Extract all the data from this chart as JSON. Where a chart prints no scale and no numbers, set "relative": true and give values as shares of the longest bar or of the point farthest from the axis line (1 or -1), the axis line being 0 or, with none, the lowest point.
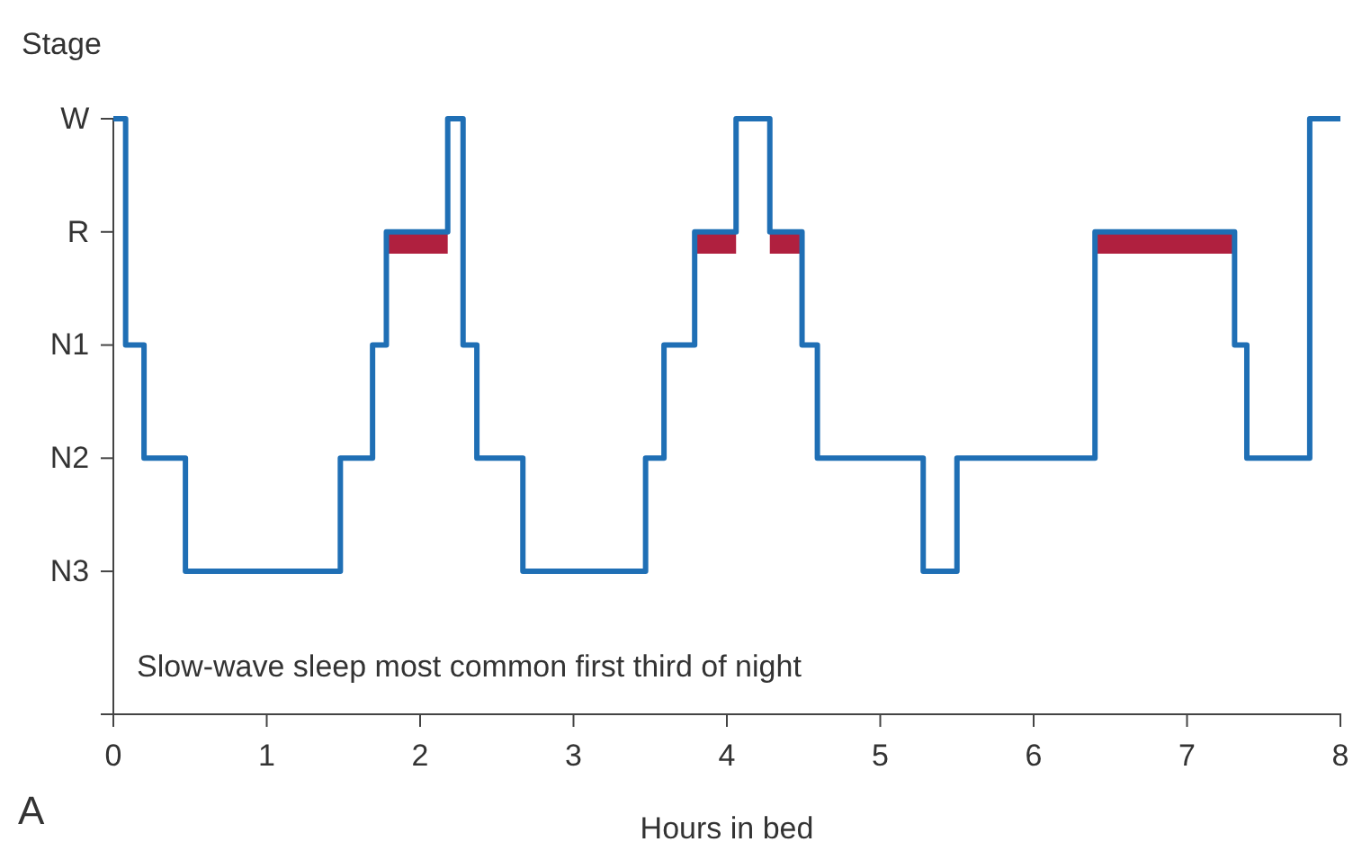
{
  "chart_data": {
    "type": "step",
    "xlabel": "Hours in bed",
    "ylabel": "Stage",
    "relative": true,
    "annotations": [
      "Slow-wave sleep most common first third of night",
      "A",
      "W",
      "R",
      "N1",
      "N2",
      "N3"
    ],
    "xlim": [
      0,
      8
    ],
    "xticks": [
      0,
      1,
      2,
      3,
      4,
      5,
      6,
      7,
      8
    ],
    "grid": false,
    "series": [
      {
        "color": "#1f6fb5",
        "x": [
          0,
          0.08,
          0.2,
          0.47,
          1.48,
          1.69,
          1.78,
          2.18,
          2.28,
          2.37,
          2.67,
          3.47,
          3.59,
          3.79,
          4.06,
          4.28,
          4.49,
          4.59,
          5.28,
          5.5,
          6.4,
          7.31,
          7.39,
          7.8,
          8
        ],
        "values": [
          1,
          0.62,
          0.43,
          0.24,
          0.43,
          0.62,
          0.81,
          1,
          0.62,
          0.43,
          0.24,
          0.43,
          0.62,
          0.81,
          1,
          0.81,
          0.62,
          0.43,
          0.24,
          0.43,
          0.81,
          0.62,
          0.43,
          1,
          1
        ]
      },
      {
        "type": "line",
        "color": "#b0203f",
        "x": [
          1.78,
          2.18
        ],
        "values": [
          0.79,
          0.79
        ]
      },
      {
        "type": "line",
        "color": "#b0203f",
        "x": [
          3.79,
          4.06
        ],
        "values": [
          0.79,
          0.79
        ]
      },
      {
        "type": "line",
        "color": "#b0203f",
        "x": [
          4.28,
          4.49
        ],
        "values": [
          0.79,
          0.79
        ]
      },
      {
        "type": "line",
        "color": "#b0203f",
        "x": [
          6.4,
          7.31
        ],
        "values": [
          0.79,
          0.79
        ]
      }
    ]
  }
}
